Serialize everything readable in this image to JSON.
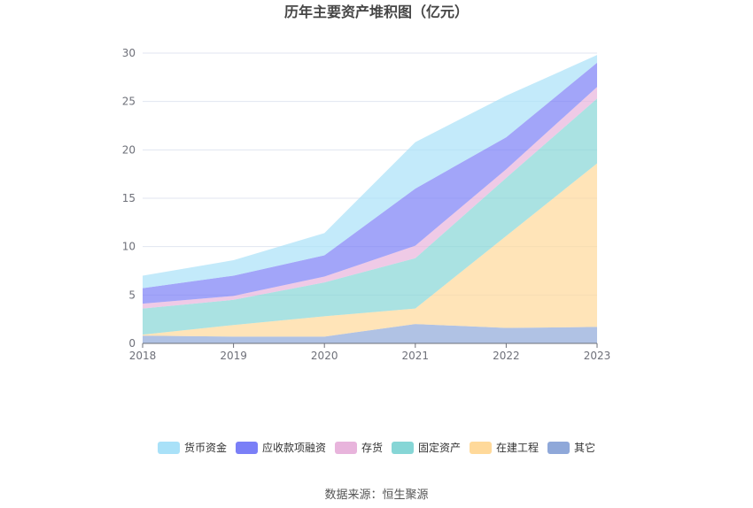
{
  "chart_data": {
    "type": "area",
    "stacked": true,
    "title": "历年主要资产堆积图（亿元）",
    "x": [
      "2018",
      "2019",
      "2020",
      "2021",
      "2022",
      "2023"
    ],
    "ylim": [
      0,
      30
    ],
    "yticks": [
      0,
      5,
      10,
      15,
      20,
      25,
      30
    ],
    "grid": true,
    "legend_position": "bottom",
    "series": [
      {
        "name": "其它",
        "color": "#8fa8d9",
        "values": [
          0.8,
          0.7,
          0.7,
          2.0,
          1.6,
          1.7
        ]
      },
      {
        "name": "在建工程",
        "color": "#ffd99a",
        "values": [
          0.1,
          1.2,
          2.1,
          1.6,
          9.5,
          16.9
        ]
      },
      {
        "name": "固定资产",
        "color": "#86d6d6",
        "values": [
          2.7,
          2.6,
          3.5,
          5.2,
          6.0,
          6.7
        ]
      },
      {
        "name": "存货",
        "color": "#e8b4dc",
        "values": [
          0.5,
          0.4,
          0.6,
          1.3,
          0.9,
          1.2
        ]
      },
      {
        "name": "应收款项融资",
        "color": "#7a7ff7",
        "values": [
          1.6,
          2.1,
          2.2,
          5.9,
          3.3,
          2.5
        ]
      },
      {
        "name": "货币资金",
        "color": "#a9e1f8",
        "values": [
          1.3,
          1.6,
          2.3,
          4.8,
          4.3,
          0.8
        ]
      }
    ],
    "legend_order": [
      "货币资金",
      "应收款项融资",
      "存货",
      "固定资产",
      "在建工程",
      "其它"
    ]
  },
  "footer": {
    "source": "数据来源：恒生聚源"
  }
}
